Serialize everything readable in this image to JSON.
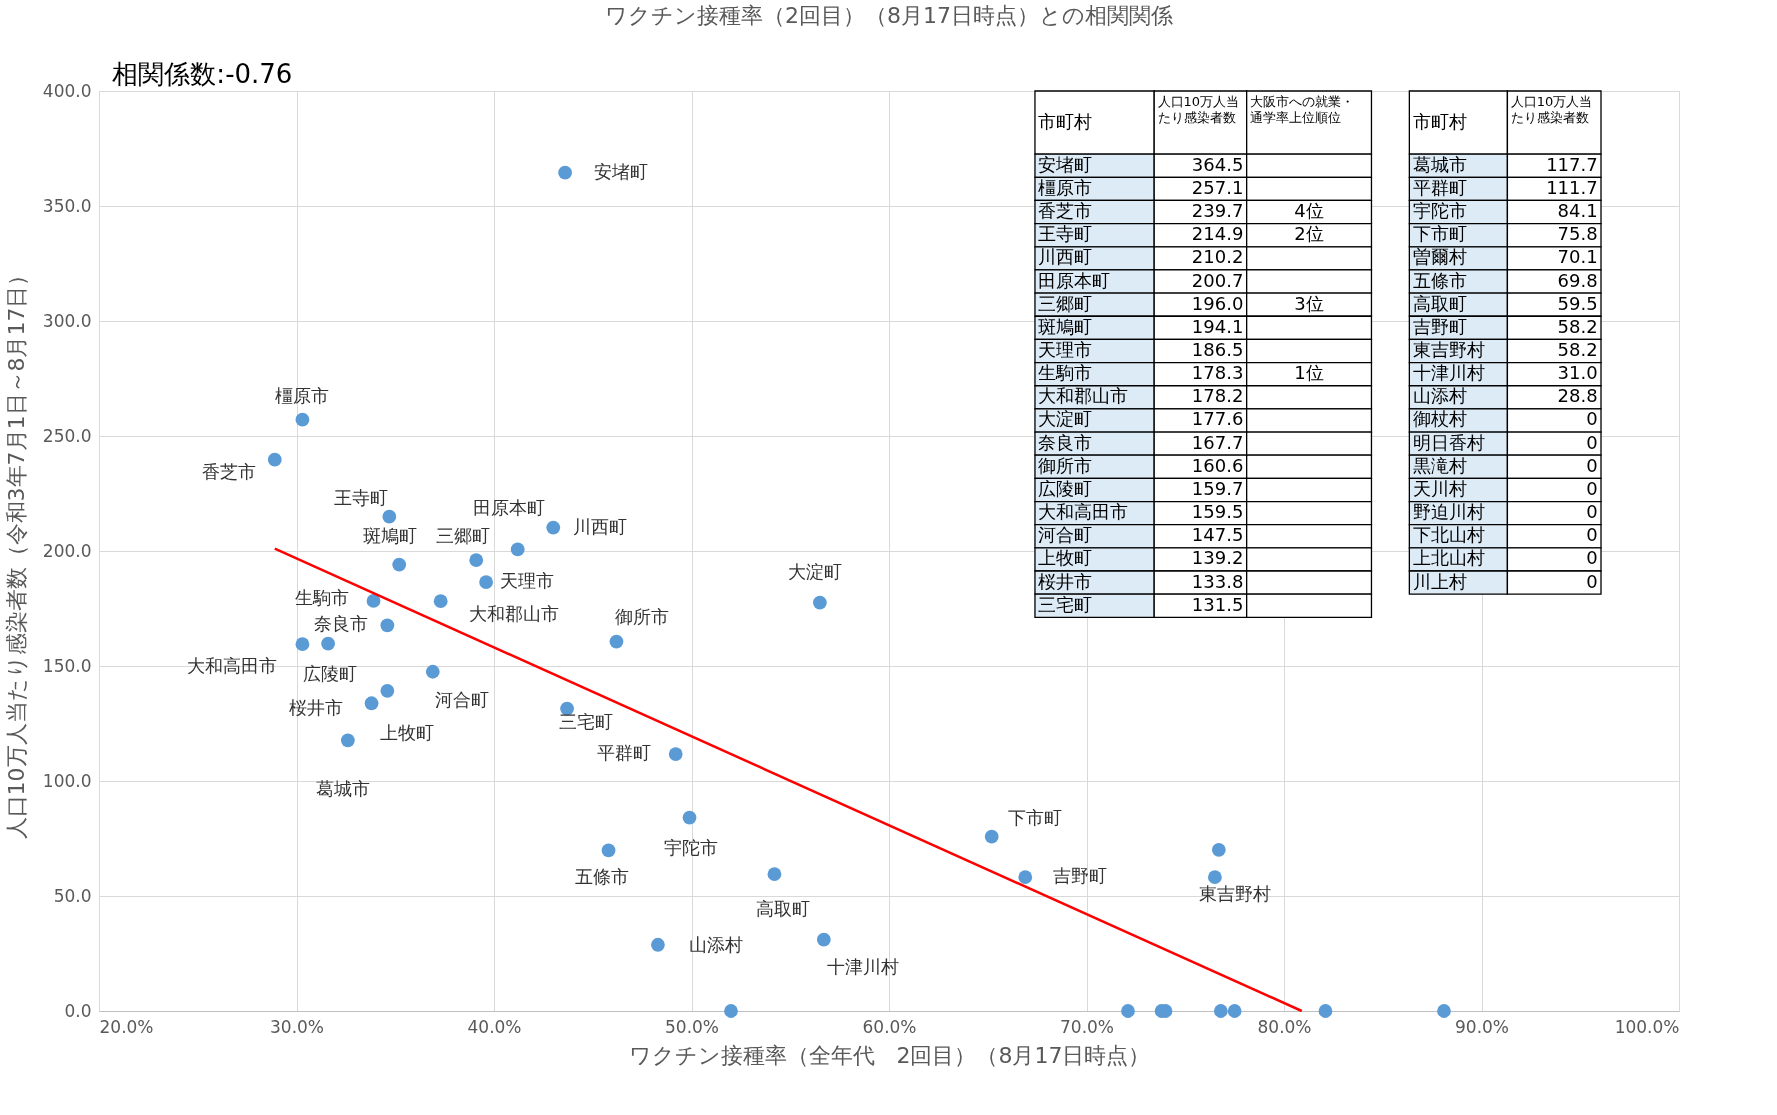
{
  "chart_data": {
    "type": "scatter",
    "title": "ワクチン接種率（2回目）（8月17日時点）との相関関係",
    "xlabel": "ワクチン接種率（全年代　2回目）（8月17日時点）",
    "ylabel": "人口10万人当たり感染者数（令和3年7月1日～8月17日）",
    "xlim": [
      20,
      100
    ],
    "ylim": [
      0,
      400
    ],
    "xticks": [
      {
        "value": 20,
        "label": "20.0%"
      },
      {
        "value": 30,
        "label": "30.0%"
      },
      {
        "value": 40,
        "label": "40.0%"
      },
      {
        "value": 50,
        "label": "50.0%"
      },
      {
        "value": 60,
        "label": "60.0%"
      },
      {
        "value": 70,
        "label": "70.0%"
      },
      {
        "value": 80,
        "label": "80.0%"
      },
      {
        "value": 90,
        "label": "90.0%"
      },
      {
        "value": 100,
        "label": "100.0%"
      }
    ],
    "yticks": [
      {
        "value": 0,
        "label": "0.0"
      },
      {
        "value": 50,
        "label": "50.0"
      },
      {
        "value": 100,
        "label": "100.0"
      },
      {
        "value": 150,
        "label": "150.0"
      },
      {
        "value": 200,
        "label": "200.0"
      },
      {
        "value": 250,
        "label": "250.0"
      },
      {
        "value": 300,
        "label": "300.0"
      },
      {
        "value": 350,
        "label": "350.0"
      },
      {
        "value": 400,
        "label": "400.0"
      }
    ],
    "grid": true,
    "series": [
      {
        "color": "#5b9bd5",
        "marker": "circle",
        "x": [
          43.6,
          30.3,
          28.9,
          34.7,
          43.0,
          41.2,
          39.1,
          35.2,
          39.6,
          33.9,
          37.3,
          56.5,
          34.6,
          46.2,
          31.6,
          30.3,
          36.9,
          34.6,
          33.8,
          43.7,
          32.6,
          49.2,
          49.9,
          65.2,
          76.7,
          45.8,
          54.2,
          66.9,
          76.5,
          56.7,
          48.3,
          52.0,
          72.1,
          73.8,
          74.0,
          76.8,
          77.5,
          82.1,
          88.1
        ],
        "values": [
          364.5,
          257.1,
          239.7,
          214.9,
          210.2,
          200.7,
          196.0,
          194.1,
          186.5,
          178.3,
          178.2,
          177.6,
          167.7,
          160.6,
          159.7,
          159.5,
          147.5,
          139.2,
          133.8,
          131.5,
          117.7,
          111.7,
          84.1,
          75.8,
          70.1,
          69.8,
          59.5,
          58.2,
          58.2,
          31.0,
          28.8,
          0,
          0,
          0,
          0,
          0,
          0,
          0,
          0
        ],
        "value_labels": [
          "安堵町",
          "橿原市",
          "香芝市",
          "王寺町",
          "川西町",
          "田原本町",
          "三郷町",
          "斑鳩町",
          "天理市",
          "生駒市",
          "大和郡山市",
          "大淀町",
          "奈良市",
          "御所市",
          "広陵町",
          "大和高田市",
          "河合町",
          "上牧町",
          "桜井市",
          "三宅町",
          "葛城市",
          "平群町",
          "宇陀市",
          "下市町",
          null,
          "五條市",
          "高取町",
          "吉野町",
          "東吉野村",
          "十津川村",
          "山添村",
          null,
          null,
          null,
          null,
          null,
          null,
          null,
          null
        ]
      },
      {
        "type": "line",
        "color": "#ff0000",
        "x": [
          28.9,
          80.9
        ],
        "values": [
          201,
          0
        ]
      }
    ],
    "annotations": [
      "相関係数:-0.76",
      "市町村",
      "人口10万人当たり感染者数",
      "大阪市への就業・通学率上位順位",
      "安堵町",
      "364.5",
      null,
      "橿原市",
      "257.1",
      null,
      "香芝市",
      "239.7",
      "4位",
      "王寺町",
      "214.9",
      "2位",
      "川西町",
      "210.2",
      null,
      "田原本町",
      "200.7",
      null,
      "三郷町",
      "196.0",
      "3位",
      "斑鳩町",
      "194.1",
      null,
      "天理市",
      "186.5",
      null,
      "生駒市",
      "178.3",
      "1位",
      "大和郡山市",
      "178.2",
      null,
      "大淀町",
      "177.6",
      null,
      "奈良市",
      "167.7",
      null,
      "御所市",
      "160.6",
      null,
      "広陵町",
      "159.7",
      null,
      "大和高田市",
      "159.5",
      null,
      "河合町",
      "147.5",
      null,
      "上牧町",
      "139.2",
      null,
      "桜井市",
      "133.8",
      null,
      "三宅町",
      "131.5",
      null,
      "市町村",
      "人口10万人当たり感染者数",
      "葛城市",
      "117.7",
      "平群町",
      "111.7",
      "宇陀市",
      "84.1",
      "下市町",
      "75.8",
      "曽爾村",
      "70.1",
      "五條市",
      "69.8",
      "高取町",
      "59.5",
      "吉野町",
      "58.2",
      "東吉野村",
      "58.2",
      "十津川村",
      "31.0",
      "山添村",
      "28.8",
      "御杖村",
      "0",
      "明日香村",
      "0",
      "黒滝村",
      "0",
      "天川村",
      "0",
      "野迫川村",
      "0",
      "下北山村",
      "0",
      "上北山村",
      "0",
      "川上村",
      "0"
    ]
  }
}
